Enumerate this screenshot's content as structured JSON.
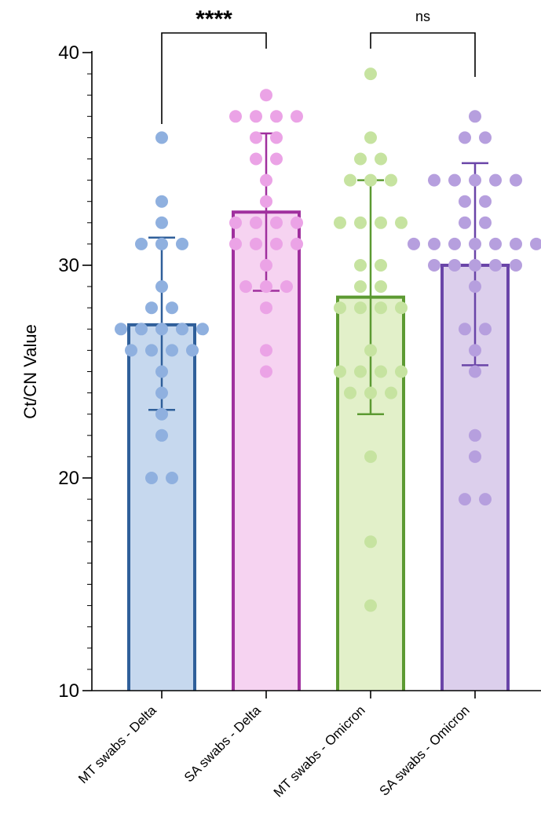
{
  "chart_data": {
    "type": "bar",
    "ylabel": "Ct/CN Value",
    "xlabel": "",
    "ylim": [
      10,
      42
    ],
    "y_ticks": [
      10,
      20,
      30,
      40
    ],
    "y_tick_labels": [
      "10",
      "20",
      "30",
      "40"
    ],
    "y_minor_step": 1,
    "categories": [
      "MT swabs - Delta",
      "SA swabs - Delta",
      "MT swabs - Omicron",
      "SA swabs - Omicron"
    ],
    "series": [
      {
        "values": [
          27.2,
          32.5,
          28.5,
          30.0
        ],
        "error_low": [
          23.2,
          28.8,
          23.0,
          25.3
        ],
        "error_high": [
          31.3,
          36.2,
          34.0,
          34.8
        ]
      }
    ],
    "points": [
      [
        36,
        33,
        32,
        31,
        31,
        31,
        29,
        28,
        28,
        27,
        27,
        27,
        27,
        27,
        26,
        26,
        26,
        26,
        25,
        24,
        23,
        22,
        20,
        20
      ],
      [
        38,
        37,
        37,
        37,
        37,
        36,
        36,
        35,
        35,
        34,
        33,
        32,
        32,
        32,
        32,
        31,
        31,
        31,
        31,
        30,
        29,
        29,
        29,
        28,
        26,
        25
      ],
      [
        39,
        36,
        35,
        35,
        34,
        34,
        34,
        32,
        32,
        32,
        32,
        30,
        30,
        29,
        29,
        28,
        28,
        28,
        28,
        26,
        25,
        25,
        25,
        25,
        24,
        24,
        24,
        21,
        17,
        14
      ],
      [
        37,
        36,
        36,
        34,
        34,
        34,
        34,
        34,
        33,
        33,
        32,
        32,
        31,
        31,
        31,
        31,
        31,
        31,
        31,
        30,
        30,
        30,
        30,
        30,
        29,
        27,
        27,
        26,
        25,
        22,
        21,
        19,
        19
      ]
    ],
    "colors": {
      "fill": [
        "#c6d8ee",
        "#f6d3f1",
        "#e2f0c9",
        "#dccfec"
      ],
      "stroke": [
        "#2f5f9a",
        "#a0309e",
        "#5c9a32",
        "#6a45a8"
      ],
      "dots": [
        "#8fb0df",
        "#eba3e6",
        "#c6e3a0",
        "#b69fde"
      ]
    },
    "comparisons": [
      {
        "from": 0,
        "to": 1,
        "label": "****"
      },
      {
        "from": 2,
        "to": 3,
        "label": "ns"
      }
    ]
  }
}
